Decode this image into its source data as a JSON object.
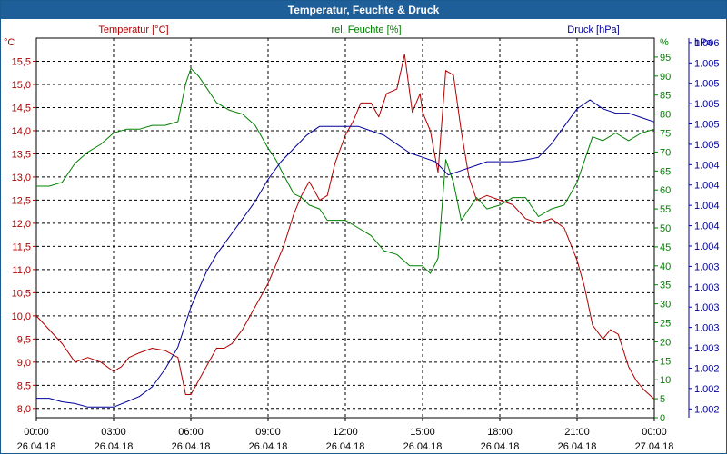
{
  "chart_data": {
    "type": "line",
    "title": "Temperatur, Feuchte & Druck",
    "x_ticks": [
      {
        "time": "00:00",
        "date": "26.04.18"
      },
      {
        "time": "03:00",
        "date": "26.04.18"
      },
      {
        "time": "06:00",
        "date": "26.04.18"
      },
      {
        "time": "09:00",
        "date": "26.04.18"
      },
      {
        "time": "12:00",
        "date": "26.04.18"
      },
      {
        "time": "15:00",
        "date": "26.04.18"
      },
      {
        "time": "18:00",
        "date": "26.04.18"
      },
      {
        "time": "21:00",
        "date": "26.04.18"
      },
      {
        "time": "00:00",
        "date": "27.04.18"
      }
    ],
    "xlim_hours": [
      0,
      24
    ],
    "grid": true,
    "axes": {
      "temperature": {
        "label": "Temperatur [°C]",
        "unit": "°C",
        "color": "#b00000",
        "range": [
          7.8,
          16.0
        ],
        "ticks": [
          "8,0",
          "8,5",
          "9,0",
          "9,5",
          "10,0",
          "10,5",
          "11,0",
          "11,5",
          "12,0",
          "12,5",
          "13,0",
          "13,5",
          "14,0",
          "14,5",
          "15,0",
          "15,5"
        ]
      },
      "humidity": {
        "label": "rel. Feuchte [%]",
        "unit": "%",
        "color": "#008000",
        "range": [
          0,
          100
        ],
        "ticks": [
          "0",
          "5",
          "10",
          "15",
          "20",
          "25",
          "30",
          "35",
          "40",
          "45",
          "50",
          "55",
          "60",
          "65",
          "70",
          "75",
          "80",
          "85",
          "90",
          "95"
        ]
      },
      "pressure": {
        "label": "Druck [hPa]",
        "unit": "hPa",
        "color": "#000099",
        "range": [
          1001.7,
          1006.0
        ],
        "ticks": [
          "1.002",
          "1.002",
          "1.002",
          "1.003",
          "1.003",
          "1.003",
          "1.003",
          "1.003",
          "1.004",
          "1.004",
          "1.004",
          "1.004",
          "1.004",
          "1.005",
          "1.005",
          "1.005",
          "1.005",
          "1.005",
          "1.006"
        ]
      }
    },
    "series": [
      {
        "name": "Temperatur [°C]",
        "axis": "temperature",
        "color": "#b00000",
        "x": [
          0,
          0.5,
          1,
          1.5,
          2,
          2.5,
          3,
          3.3,
          3.6,
          4,
          4.5,
          5,
          5.5,
          5.8,
          6,
          6.3,
          6.6,
          7,
          7.3,
          7.6,
          8,
          8.5,
          9,
          9.3,
          9.6,
          10,
          10.3,
          10.6,
          11,
          11.3,
          11.6,
          12,
          12.3,
          12.6,
          13,
          13.3,
          13.6,
          14,
          14.3,
          14.6,
          14.9,
          15,
          15.3,
          15.6,
          15.9,
          16.2,
          16.5,
          16.8,
          17.1,
          17.5,
          18,
          18.5,
          19,
          19.5,
          20,
          20.5,
          21,
          21.3,
          21.6,
          22,
          22.3,
          22.6,
          23,
          23.3,
          23.6,
          24
        ],
        "y": [
          10.0,
          9.7,
          9.4,
          9.0,
          9.1,
          9.0,
          8.8,
          8.9,
          9.1,
          9.2,
          9.3,
          9.25,
          9.1,
          8.3,
          8.3,
          8.6,
          8.9,
          9.3,
          9.3,
          9.4,
          9.7,
          10.2,
          10.7,
          11.1,
          11.5,
          12.2,
          12.6,
          12.9,
          12.5,
          12.6,
          13.3,
          13.9,
          14.2,
          14.6,
          14.6,
          14.3,
          14.8,
          14.9,
          15.65,
          14.4,
          14.8,
          14.4,
          14.0,
          13.1,
          15.3,
          15.2,
          14.0,
          13.0,
          12.5,
          12.6,
          12.5,
          12.4,
          12.1,
          12.0,
          12.1,
          11.9,
          11.2,
          10.6,
          9.8,
          9.5,
          9.7,
          9.6,
          8.9,
          8.6,
          8.4,
          8.2
        ]
      },
      {
        "name": "rel. Feuchte [%]",
        "axis": "humidity",
        "color": "#008000",
        "x": [
          0,
          0.5,
          1,
          1.5,
          2,
          2.5,
          3,
          3.5,
          4,
          4.5,
          5,
          5.5,
          5.8,
          6,
          6.3,
          6.6,
          7,
          7.5,
          8,
          8.5,
          9,
          9.3,
          9.6,
          10,
          10.3,
          10.6,
          11,
          11.3,
          11.6,
          12,
          12.5,
          13,
          13.5,
          14,
          14.5,
          15,
          15.3,
          15.6,
          15.9,
          16.2,
          16.5,
          16.8,
          17.1,
          17.5,
          18,
          18.5,
          19,
          19.5,
          20,
          20.5,
          21,
          21.3,
          21.6,
          22,
          22.5,
          23,
          23.5,
          24
        ],
        "y": [
          61,
          61,
          62,
          67,
          70,
          72,
          75,
          76,
          76,
          77,
          77,
          78,
          88,
          92,
          90,
          87,
          83,
          81,
          80,
          77,
          71,
          68,
          64,
          59,
          58,
          56,
          55,
          52,
          52,
          52,
          50,
          48,
          44,
          43,
          40,
          40,
          38,
          42,
          68,
          62,
          52,
          55,
          58,
          55,
          56,
          58,
          58,
          53,
          55,
          56,
          62,
          68,
          74,
          73,
          75,
          73,
          75,
          76
        ]
      },
      {
        "name": "Druck [hPa]",
        "axis": "pressure",
        "color": "#000099",
        "x": [
          0,
          0.5,
          1,
          1.5,
          2,
          2.5,
          3,
          3.5,
          4,
          4.5,
          5,
          5.5,
          6,
          6.3,
          6.6,
          7,
          7.5,
          8,
          8.5,
          9,
          9.5,
          10,
          10.5,
          11,
          11.5,
          12,
          12.5,
          13,
          13.5,
          14,
          14.5,
          15,
          15.5,
          16,
          16.5,
          17,
          17.5,
          18,
          18.5,
          19,
          19.5,
          20,
          20.5,
          21,
          21.5,
          22,
          22.5,
          23,
          23.5,
          24
        ],
        "y": [
          1001.92,
          1001.92,
          1001.88,
          1001.86,
          1001.82,
          1001.82,
          1001.82,
          1001.88,
          1001.94,
          1002.05,
          1002.25,
          1002.5,
          1002.95,
          1003.15,
          1003.35,
          1003.55,
          1003.75,
          1003.95,
          1004.15,
          1004.4,
          1004.6,
          1004.75,
          1004.9,
          1005.0,
          1005.0,
          1005.0,
          1005.0,
          1004.95,
          1004.9,
          1004.8,
          1004.7,
          1004.65,
          1004.6,
          1004.45,
          1004.5,
          1004.55,
          1004.6,
          1004.6,
          1004.6,
          1004.62,
          1004.65,
          1004.8,
          1005.0,
          1005.2,
          1005.3,
          1005.2,
          1005.15,
          1005.15,
          1005.1,
          1005.05
        ]
      }
    ]
  }
}
